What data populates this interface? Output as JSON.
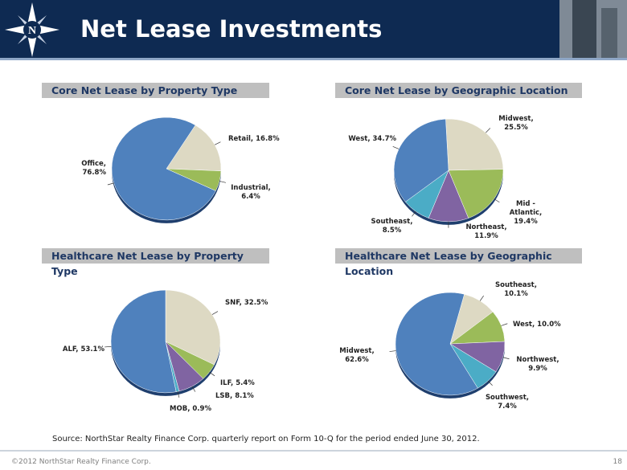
{
  "header": {
    "title": "Net Lease Investments"
  },
  "source": "Source: NorthStar Realty Finance Corp. quarterly report on Form 10-Q for the period ended June 30, 2012.",
  "footer": "©2012 NorthStar Realty Finance Corp.",
  "page_number": "18",
  "chart_data": [
    {
      "type": "pie",
      "title": "Core Net Lease by Property Type",
      "values": [
        16.8,
        6.4,
        76.8
      ],
      "value_labels": [
        "Retail, 16.8%",
        "Industrial, 6.4%",
        "Office, 76.8%"
      ],
      "colors": [
        "#ddd9c3",
        "#9bbb59",
        "#4f81bd"
      ]
    },
    {
      "type": "pie",
      "title": "Core Net Lease by Geographic Location",
      "values": [
        25.5,
        19.4,
        11.9,
        8.5,
        34.7
      ],
      "value_labels": [
        "Midwest, 25.5%",
        "Mid - Atlantic, 19.4%",
        "Northeast, 11.9%",
        "Southeast, 8.5%",
        "West, 34.7%"
      ],
      "colors": [
        "#ddd9c3",
        "#9bbb59",
        "#8064a2",
        "#4bacc6",
        "#4f81bd"
      ]
    },
    {
      "type": "pie",
      "title": "Healthcare Net Lease by Property Type",
      "values": [
        32.5,
        5.4,
        8.1,
        0.9,
        53.1
      ],
      "value_labels": [
        "SNF, 32.5%",
        "ILF, 5.4%",
        "LSB, 8.1%",
        "MOB, 0.9%",
        "ALF, 53.1%"
      ],
      "colors": [
        "#ddd9c3",
        "#9bbb59",
        "#8064a2",
        "#4bacc6",
        "#4f81bd"
      ]
    },
    {
      "type": "pie",
      "title": "Healthcare Net Lease by Geographic Location",
      "values": [
        10.1,
        10.0,
        9.9,
        7.4,
        62.6
      ],
      "value_labels": [
        "Southeast, 10.1%",
        "West, 10.0%",
        "Northwest, 9.9%",
        "Southwest, 7.4%",
        "Midwest, 62.6%"
      ],
      "colors": [
        "#ddd9c3",
        "#9bbb59",
        "#8064a2",
        "#4bacc6",
        "#4f81bd"
      ]
    }
  ]
}
